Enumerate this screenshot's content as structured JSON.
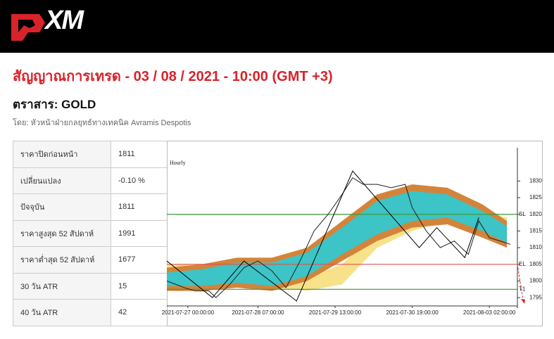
{
  "header": {
    "logo": "XM"
  },
  "title": "สัญญาณการเทรด - 03 / 08 / 2021 - 10:00 (GMT +3)",
  "instrument": "ตราสาร: GOLD",
  "author": "โดย: หัวหน้าฝ่ายกลยุทธ์ทางเทคนิค Avramis Despotis",
  "table": {
    "rows": [
      [
        "ราคาปิดก่อนหน้า",
        "1811"
      ],
      [
        "เปลี่ยนแปลง",
        "-0.10 %"
      ],
      [
        "ปัจจุบัน",
        "1811"
      ],
      [
        "ราคาสูงสุด 52 สัปดาห์",
        "1991"
      ],
      [
        "ราคาต่ำสุด 52 สัปดาห์",
        "1677"
      ],
      [
        "30 วัน ATR",
        "15"
      ],
      [
        "40 วัน ATR",
        "42"
      ]
    ]
  },
  "chart_data": {
    "type": "line",
    "title": "Hourly",
    "xlim": [
      0,
      100
    ],
    "ylim": [
      1792.5,
      1840
    ],
    "yticks": [
      1795,
      1800,
      1805,
      1810,
      1815,
      1820,
      1825,
      1830
    ],
    "xticks": [
      {
        "value": 6,
        "label": "2021-07-27 00:00:00"
      },
      {
        "value": 26,
        "label": "2021-07-28 07:00:00"
      },
      {
        "value": 48,
        "label": "2021-07-29 13:00:00"
      },
      {
        "value": 70,
        "label": "2021-07-30 19:00:00"
      },
      {
        "value": 92,
        "label": "2021-08-03 02:00:00"
      }
    ],
    "levels": [
      {
        "name": "SL",
        "value": 1820,
        "color": "#3a9a3a"
      },
      {
        "name": "EL",
        "value": 1805,
        "color": "#e05050"
      },
      {
        "name": "T1",
        "value": 1797.5,
        "color": "#3a9a3a"
      }
    ],
    "bands": [
      {
        "color": "#f7e28a",
        "x": [
          0,
          10,
          20,
          30,
          40,
          50,
          60,
          70,
          80,
          90,
          97
        ],
        "upper": [
          1805,
          1805,
          1805,
          1803,
          1801,
          1805,
          1815,
          1821,
          1823,
          1821,
          1819
        ],
        "lower": [
          1800,
          1800,
          1800,
          1798,
          1797,
          1799,
          1810,
          1815,
          1818,
          1815,
          1812
        ]
      },
      {
        "color": "#d4843a",
        "x": [
          0,
          10,
          20,
          30,
          40,
          50,
          60,
          70,
          80,
          90,
          97
        ],
        "upper": [
          1804,
          1805,
          1807,
          1807,
          1810,
          1818,
          1826,
          1829,
          1828,
          1823,
          1818
        ],
        "lower": [
          1797,
          1797,
          1798,
          1797,
          1800,
          1806,
          1812,
          1816,
          1817,
          1813,
          1810
        ]
      },
      {
        "color": "#3cc4c6",
        "x": [
          0,
          10,
          20,
          30,
          40,
          50,
          60,
          70,
          80,
          90,
          97
        ],
        "upper": [
          1802.5,
          1803.5,
          1805.5,
          1805.5,
          1808.5,
          1816,
          1824,
          1827,
          1826,
          1821,
          1816.5
        ],
        "lower": [
          1798.5,
          1798.5,
          1799.5,
          1798.5,
          1801.5,
          1808,
          1814,
          1818,
          1819,
          1815,
          1811.5
        ]
      }
    ],
    "series": [
      {
        "color": "#222222",
        "x": [
          0,
          5,
          8,
          12,
          14,
          18,
          22,
          26,
          30,
          34,
          38,
          42,
          46,
          50,
          53,
          56,
          60,
          64,
          68,
          70,
          74,
          78,
          82,
          86,
          89,
          92,
          95,
          98
        ],
        "values": [
          1800,
          1798,
          1797,
          1797,
          1795,
          1799,
          1804,
          1806,
          1803,
          1798,
          1806,
          1815,
          1820,
          1826,
          1831,
          1829,
          1829,
          1828,
          1829,
          1822,
          1815,
          1810,
          1812,
          1808,
          1818,
          1813,
          1812,
          1811
        ]
      },
      {
        "color": "#000000",
        "x": [
          0,
          13,
          22,
          37,
          53,
          72,
          77,
          85,
          89
        ],
        "values": [
          1806,
          1795,
          1806,
          1794,
          1833,
          1810,
          1816,
          1807,
          1819
        ]
      }
    ]
  }
}
